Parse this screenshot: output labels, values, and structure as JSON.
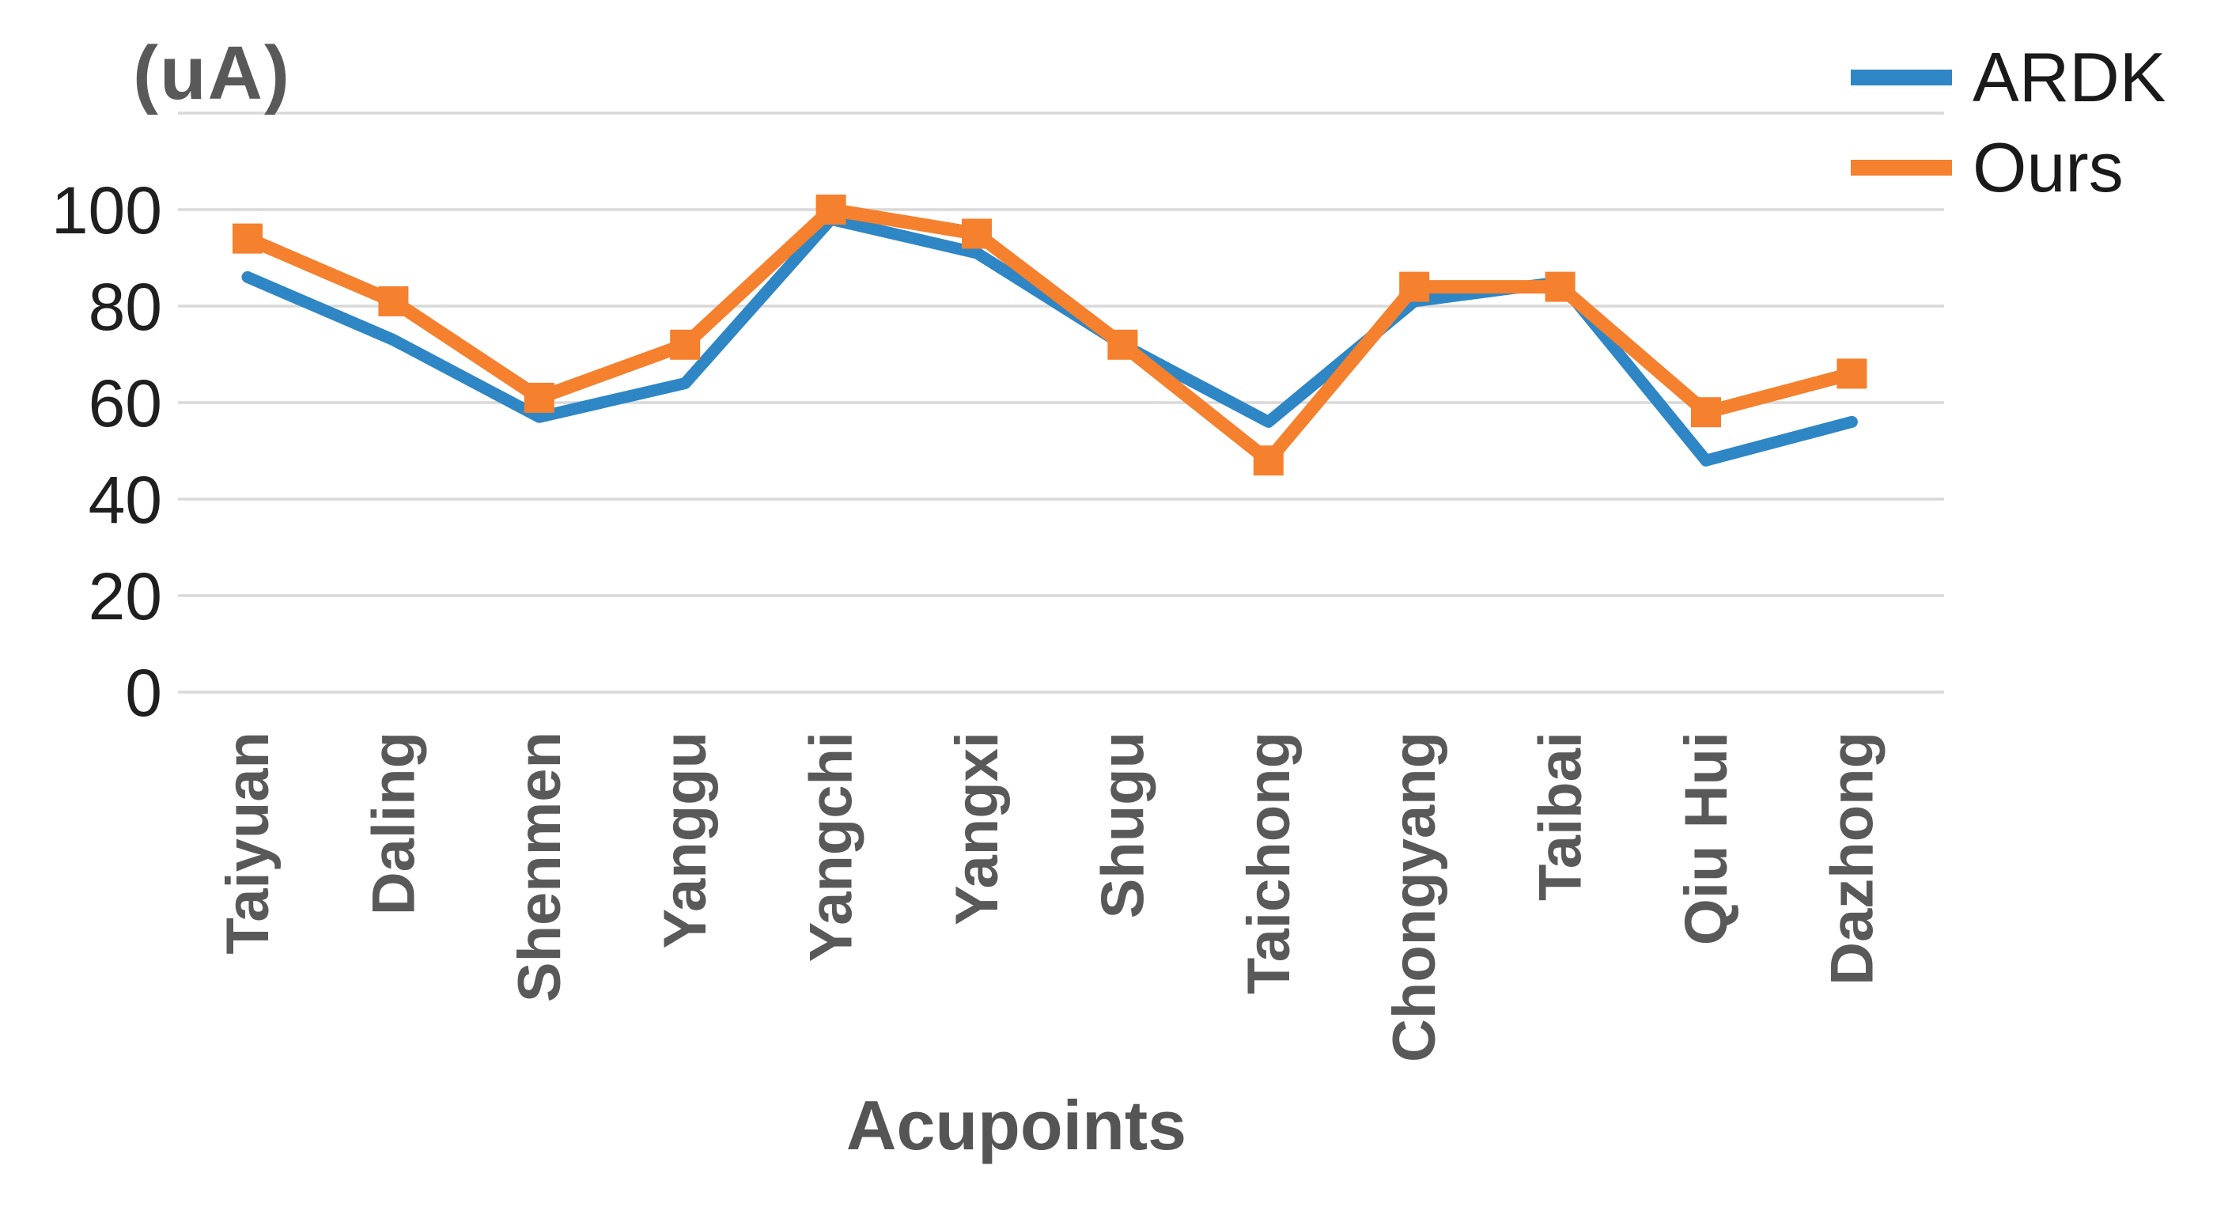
{
  "chart_data": {
    "type": "line",
    "y_unit_label": "(uA)",
    "xlabel": "Acupoints",
    "categories": [
      "Taiyuan",
      "Daling",
      "Shenmen",
      "Yanggu",
      "Yangchi",
      "Yangxi",
      "Shugu",
      "Taichong",
      "Chongyang",
      "Taibai",
      "Qiu Hui",
      "Dazhong"
    ],
    "series": [
      {
        "name": "ARDK",
        "color": "#2E86C5",
        "marker": "none",
        "values": [
          86,
          73,
          57,
          64,
          98,
          91,
          72,
          56,
          81,
          85,
          48,
          56
        ]
      },
      {
        "name": "Ours",
        "color": "#F5802D",
        "marker": "square",
        "values": [
          94,
          81,
          61,
          72,
          100,
          95,
          72,
          48,
          84,
          84,
          58,
          66
        ]
      }
    ],
    "ylim": [
      0,
      120
    ],
    "yticks": [
      100,
      80,
      60,
      40,
      20,
      0
    ],
    "grid": true,
    "gridline_step": 20,
    "gridline_color": "#D9D9D9",
    "tick_label_color": "#1f1f1f",
    "category_label_color": "#595959",
    "legend_position": "top-right"
  }
}
